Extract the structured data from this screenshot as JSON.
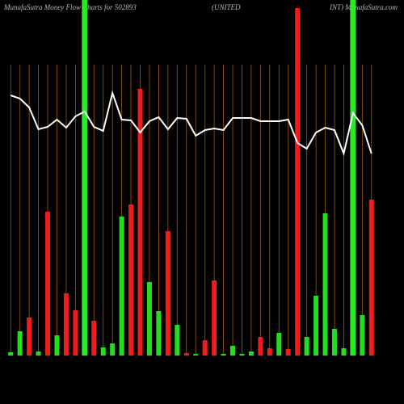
{
  "chart_data": {
    "type": "bar",
    "title": [
      "MunafaSutra  Money Flow  Charts for 502893",
      "(UNITED",
      "INT) MunafaSutra.com"
    ],
    "ylim": [
      0,
      440
    ],
    "series": [
      {
        "type": "bar",
        "colors": [
          "#22dd22",
          "#22dd22",
          "#ee1c1c",
          "#22dd22",
          "#ee1c1c",
          "#22dd22",
          "#ee1c1c",
          "#ee1c1c",
          "#22ee22",
          "#ee1c1c",
          "#22dd22",
          "#22dd22",
          "#22dd22",
          "#ee1c1c",
          "#ee1c1c",
          "#22dd22",
          "#22dd22",
          "#ee1c1c",
          "#22dd22",
          "#ee1c1c",
          "#22dd22",
          "#ee1c1c",
          "#ee1c1c",
          "#22dd22",
          "#22dd22",
          "#22dd22",
          "#22dd22",
          "#ee1c1c",
          "#ee1c1c",
          "#22dd22",
          "#ee1c1c",
          "#ee1c1c",
          "#22dd22",
          "#22dd22",
          "#22dd22",
          "#22dd22",
          "#22dd22",
          "#22ee22",
          "#22dd22",
          "#ee1c1c"
        ],
        "values": [
          4,
          30,
          47,
          5,
          178,
          25,
          77,
          56,
          440,
          43,
          10,
          15,
          172,
          187,
          330,
          91,
          55,
          154,
          38,
          3,
          2,
          19,
          93,
          2,
          12,
          2,
          5,
          23,
          9,
          28,
          8,
          430,
          23,
          74,
          176,
          33,
          9,
          440,
          50,
          193
        ]
      },
      {
        "type": "line",
        "color": "#ffffff",
        "values": [
          322,
          318,
          307,
          280,
          283,
          292,
          282,
          296,
          302,
          283,
          278,
          325,
          292,
          291,
          276,
          290,
          295,
          280,
          294,
          293,
          272,
          279,
          281,
          279,
          294,
          294,
          294,
          290,
          290,
          290,
          292,
          263,
          256,
          276,
          282,
          279,
          250,
          300,
          285,
          250
        ]
      }
    ]
  }
}
